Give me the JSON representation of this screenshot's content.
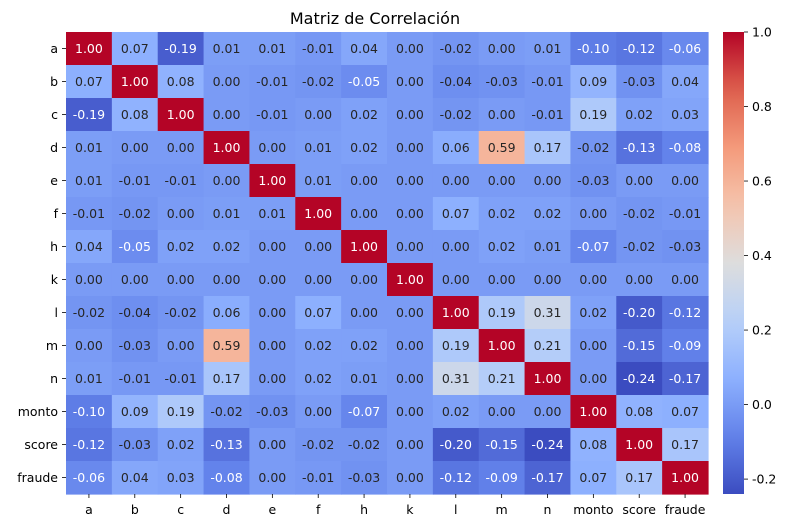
{
  "chart_data": {
    "type": "heatmap",
    "title": "Matriz de Correlación",
    "xlabel": "",
    "ylabel": "",
    "labels": [
      "a",
      "b",
      "c",
      "d",
      "e",
      "f",
      "h",
      "k",
      "l",
      "m",
      "n",
      "monto",
      "score",
      "fraude"
    ],
    "matrix": [
      [
        1.0,
        0.07,
        -0.19,
        0.01,
        0.01,
        -0.01,
        0.04,
        -0.0,
        -0.02,
        0.0,
        0.01,
        -0.1,
        -0.12,
        -0.06
      ],
      [
        0.07,
        1.0,
        0.08,
        0.0,
        -0.01,
        -0.02,
        -0.05,
        -0.0,
        -0.04,
        -0.03,
        -0.01,
        0.09,
        -0.03,
        0.04
      ],
      [
        -0.19,
        0.08,
        1.0,
        0.0,
        -0.01,
        -0.0,
        0.02,
        -0.0,
        -0.02,
        -0.0,
        -0.01,
        0.19,
        0.02,
        0.03
      ],
      [
        0.01,
        0.0,
        0.0,
        1.0,
        -0.0,
        0.01,
        0.02,
        0.0,
        0.06,
        0.59,
        0.17,
        -0.02,
        -0.13,
        -0.08
      ],
      [
        0.01,
        -0.01,
        -0.01,
        -0.0,
        1.0,
        0.01,
        0.0,
        -0.0,
        -0.0,
        -0.0,
        -0.0,
        -0.03,
        -0.0,
        -0.0
      ],
      [
        -0.01,
        -0.02,
        -0.0,
        0.01,
        0.01,
        1.0,
        -0.0,
        -0.0,
        0.07,
        0.02,
        0.02,
        0.0,
        -0.02,
        -0.01
      ],
      [
        0.04,
        -0.05,
        0.02,
        0.02,
        0.0,
        -0.0,
        1.0,
        -0.0,
        -0.0,
        0.02,
        0.01,
        -0.07,
        -0.02,
        -0.03
      ],
      [
        -0.0,
        -0.0,
        -0.0,
        0.0,
        -0.0,
        -0.0,
        -0.0,
        1.0,
        0.0,
        0.0,
        0.0,
        -0.0,
        0.0,
        0.0
      ],
      [
        -0.02,
        -0.04,
        -0.02,
        0.06,
        -0.0,
        0.07,
        -0.0,
        0.0,
        1.0,
        0.19,
        0.31,
        0.02,
        -0.2,
        -0.12
      ],
      [
        0.0,
        -0.03,
        -0.0,
        0.59,
        -0.0,
        0.02,
        0.02,
        0.0,
        0.19,
        1.0,
        0.21,
        -0.0,
        -0.15,
        -0.09
      ],
      [
        0.01,
        -0.01,
        -0.01,
        0.17,
        -0.0,
        0.02,
        0.01,
        0.0,
        0.31,
        0.21,
        1.0,
        -0.0,
        -0.24,
        -0.17
      ],
      [
        -0.1,
        0.09,
        0.19,
        -0.02,
        -0.03,
        0.0,
        -0.07,
        -0.0,
        0.02,
        -0.0,
        -0.0,
        1.0,
        0.08,
        0.07
      ],
      [
        -0.12,
        -0.03,
        0.02,
        -0.13,
        -0.0,
        -0.02,
        -0.02,
        0.0,
        -0.2,
        -0.15,
        -0.24,
        0.08,
        1.0,
        0.17
      ],
      [
        -0.06,
        0.04,
        0.03,
        -0.08,
        -0.0,
        -0.01,
        -0.03,
        0.0,
        -0.12,
        -0.09,
        -0.17,
        0.07,
        0.17,
        1.0
      ]
    ],
    "colormap": "coolwarm",
    "vmin": -0.24,
    "vmax": 1.0,
    "colorbar_ticks": [
      "1.0",
      "0.8",
      "0.6",
      "0.4",
      "0.2",
      "0.0",
      "-0.2"
    ],
    "annotations": true,
    "grid": false
  }
}
